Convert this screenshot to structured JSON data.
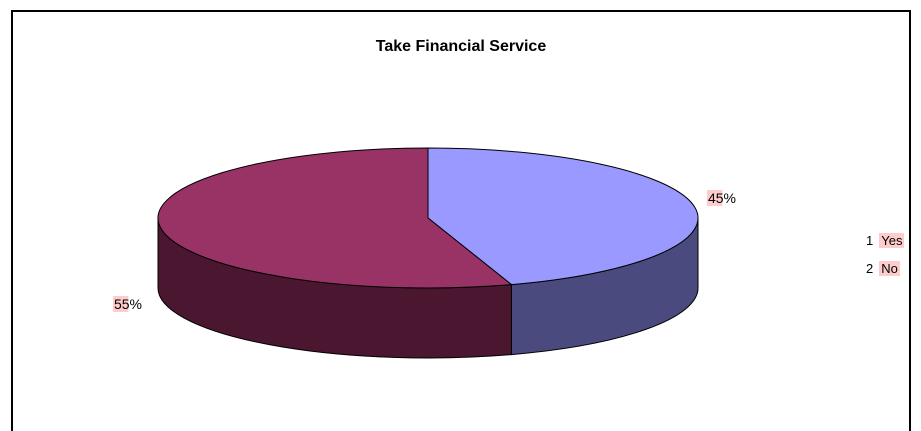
{
  "chart_data": {
    "type": "pie",
    "title": "Take Financial Service",
    "categories": [
      "Yes",
      "No"
    ],
    "values": [
      45,
      55
    ],
    "data_labels": [
      "45%",
      "55%"
    ],
    "legend": [
      {
        "index": "1",
        "label": "Yes"
      },
      {
        "index": "2",
        "label": "No"
      }
    ],
    "legend_position": "right",
    "three_d": true
  },
  "colors": {
    "yes_top": "#9999ff",
    "yes_side": "#4a4a7e",
    "no_top": "#993366",
    "no_side": "#4b1730",
    "label_bg": "#ffcccc"
  }
}
